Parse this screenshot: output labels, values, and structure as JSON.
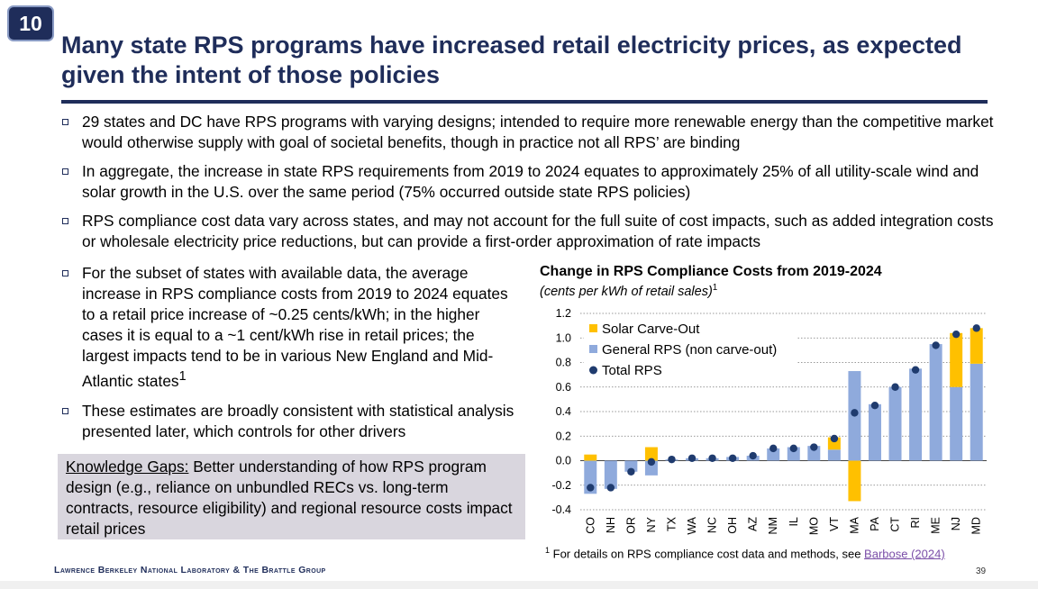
{
  "slide": {
    "number": "10",
    "title": "Many state RPS programs have increased retail electricity prices, as expected given the intent of those policies"
  },
  "bullets": [
    "29 states and DC have RPS programs with varying designs; intended to require more renewable energy than the competitive market would otherwise supply with goal of societal benefits, though in practice not all RPS’ are binding",
    "In aggregate, the increase in state RPS requirements from 2019 to 2024 equates to approximately 25% of all utility-scale wind and solar growth in the U.S. over the same period (75% occurred outside state RPS policies)",
    "RPS compliance cost data vary across states, and may not account for the full suite of cost impacts, such as added integration costs or wholesale electricity price reductions, but can provide a first-order approximation of rate impacts"
  ],
  "left_bullets": [
    {
      "text": "For the subset of states with available data, the average increase in RPS compliance costs from 2019 to 2024 equates to a retail price increase of ~0.25 cents/kWh; in the higher cases it is equal to a ~1 cent/kWh rise in retail prices; the largest impacts tend to be in various New England and Mid-Atlantic states",
      "sup": "1"
    },
    {
      "text": "These estimates are broadly consistent with statistical analysis presented later, which controls for other drivers",
      "sup": ""
    }
  ],
  "knowledge_gaps": {
    "label": "Knowledge Gaps:",
    "text": " Better understanding of how RPS program design (e.g., reliance on unbundled RECs vs. long-term contracts, resource eligibility) and regional resource costs impact retail prices"
  },
  "chart_data": {
    "type": "bar",
    "title": "Change in RPS Compliance Costs from 2019-2024",
    "subtitle": "(cents per kWh of retail sales)",
    "subtitle_sup": "1",
    "categories": [
      "CO",
      "NH",
      "OR",
      "NY",
      "TX",
      "WA",
      "NC",
      "OH",
      "AZ",
      "NM",
      "IL",
      "MO",
      "VT",
      "MA",
      "PA",
      "CT",
      "RI",
      "ME",
      "NJ",
      "MD"
    ],
    "series": [
      {
        "name": "Solar Carve-Out",
        "kind": "bar",
        "color": "#ffc000",
        "values": [
          0.05,
          0,
          0,
          0.11,
          0,
          0,
          0,
          0,
          0,
          0,
          0,
          0,
          0.1,
          -0.33,
          0,
          0,
          0,
          0,
          0.44,
          0.29
        ]
      },
      {
        "name": "General RPS (non carve-out)",
        "kind": "bar",
        "color": "#8faadc",
        "values": [
          -0.27,
          -0.23,
          -0.09,
          -0.12,
          0.01,
          0.02,
          0.02,
          0.03,
          0.04,
          0.1,
          0.11,
          0.12,
          0.09,
          0.73,
          0.46,
          0.6,
          0.75,
          0.95,
          0.6,
          0.79
        ]
      },
      {
        "name": "Total RPS",
        "kind": "marker",
        "color": "#1f3b6e",
        "values": [
          -0.22,
          -0.22,
          -0.09,
          -0.01,
          0.01,
          0.02,
          0.02,
          0.02,
          0.04,
          0.1,
          0.1,
          0.11,
          0.18,
          0.39,
          0.45,
          0.6,
          0.74,
          0.94,
          1.03,
          1.08
        ]
      }
    ],
    "ylim": [
      -0.4,
      1.2
    ],
    "yticks": [
      "1.2",
      "1.0",
      "0.8",
      "0.6",
      "0.4",
      "0.2",
      "0.0",
      "-0.2",
      "-0.4"
    ],
    "ytick_values": [
      1.2,
      1.0,
      0.8,
      0.6,
      0.4,
      0.2,
      0.0,
      -0.2,
      -0.4
    ],
    "xlabel": "",
    "ylabel": "",
    "grid": true,
    "legend": "top-left"
  },
  "footnote": {
    "sup": "1",
    "text": " For details on RPS compliance cost data and methods, see ",
    "link": "Barbose (2024)"
  },
  "footer": {
    "org": "Lawrence Berkeley National Laboratory & The Brattle Group",
    "page": "39"
  },
  "colors": {
    "navy": "#1f2d5a",
    "solar": "#ffc000",
    "general": "#8faadc",
    "total": "#1f3b6e"
  }
}
